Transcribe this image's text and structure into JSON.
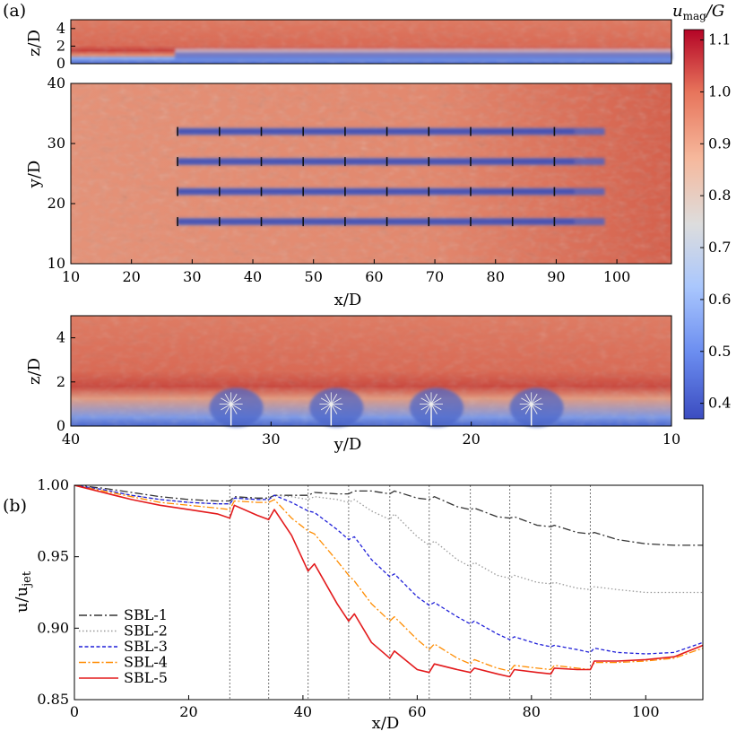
{
  "panel_a": {
    "label": "(a)",
    "colorbar": {
      "title": "u_mag/G",
      "title_main": "u",
      "title_sub": "mag",
      "title_tail": "/G",
      "range": [
        0.37,
        1.12
      ],
      "ticks": [
        "1.1",
        "1.0",
        "0.9",
        "0.8",
        "0.7",
        "0.6",
        "0.5",
        "0.4"
      ],
      "tick_values": [
        1.1,
        1.0,
        0.9,
        0.8,
        0.7,
        0.6,
        0.5,
        0.4
      ],
      "colormap": [
        "#3b4cc0",
        "#6b8df0",
        "#aac7fd",
        "#dddddd",
        "#f6b89c",
        "#e7745b",
        "#b40426"
      ]
    },
    "side_view": {
      "ylabel": "z/D",
      "yticks": [
        "0",
        "2",
        "4"
      ],
      "ytick_values": [
        0,
        2,
        4
      ],
      "zrange": [
        0,
        5
      ]
    },
    "top_view": {
      "xlabel": "x/D",
      "ylabel": "y/D",
      "xticks": [
        "10",
        "20",
        "30",
        "40",
        "50",
        "60",
        "70",
        "80",
        "90",
        "100"
      ],
      "xtick_values": [
        10,
        20,
        30,
        40,
        50,
        60,
        70,
        80,
        90,
        100
      ],
      "yticks": [
        "10",
        "20",
        "30",
        "40"
      ],
      "ytick_values": [
        10,
        20,
        30,
        40
      ],
      "xrange": [
        10,
        109
      ],
      "yrange": [
        10,
        40
      ],
      "turbine_rows_y": [
        17,
        22,
        27,
        32
      ],
      "turbine_cols_x": [
        27.6,
        34.5,
        41.4,
        48.3,
        55.2,
        62.1,
        69,
        75.9,
        82.8,
        89.7
      ]
    },
    "front_view": {
      "xlabel": "y/D",
      "ylabel": "z/D",
      "xticks": [
        "40",
        "30",
        "20",
        "10"
      ],
      "xtick_values": [
        40,
        30,
        20,
        10
      ],
      "yticks": [
        "0",
        "2",
        "4"
      ],
      "ytick_values": [
        0,
        2,
        4
      ],
      "yrange_horizontal": [
        40,
        10
      ],
      "zrange": [
        0,
        5
      ],
      "turbine_y": [
        32,
        27,
        22,
        17
      ],
      "hub_height": 1
    }
  },
  "panel_b": {
    "label": "(b)",
    "vlines_x": [
      27.2,
      34,
      40.9,
      48,
      55.2,
      62.1,
      69.3,
      76.2,
      83.4,
      90.3
    ]
  },
  "chart_data": {
    "type": "line",
    "xlabel": "x/D",
    "ylabel": "u/u_jet",
    "ylabel_main": "u/u",
    "ylabel_sub": "jet",
    "xlim": [
      0,
      110
    ],
    "ylim": [
      0.85,
      1.0
    ],
    "xticks": [
      "0",
      "20",
      "40",
      "60",
      "80",
      "100"
    ],
    "xtick_values": [
      0,
      20,
      40,
      60,
      80,
      100
    ],
    "yticks": [
      "0.85",
      "0.90",
      "0.95",
      "1.00"
    ],
    "ytick_values": [
      0.85,
      0.9,
      0.95,
      1.0
    ],
    "grid": false,
    "legend_position": "bottom-left",
    "x": [
      0,
      5,
      10,
      15,
      20,
      25,
      27.2,
      28,
      32,
      34,
      35,
      38,
      40.9,
      42,
      46,
      48,
      49,
      52,
      55.2,
      56,
      60,
      62.1,
      63,
      67,
      69.3,
      70,
      74,
      76.2,
      77,
      81,
      83.4,
      84,
      88,
      90.3,
      91,
      95,
      100,
      105,
      110
    ],
    "series": [
      {
        "name": "SBL-1",
        "color": "#333333",
        "dash": "9,3,2,3",
        "values": [
          1.0,
          0.998,
          0.995,
          0.992,
          0.99,
          0.989,
          0.989,
          0.992,
          0.991,
          0.991,
          0.993,
          0.993,
          0.993,
          0.995,
          0.994,
          0.994,
          0.996,
          0.996,
          0.994,
          0.996,
          0.991,
          0.99,
          0.992,
          0.985,
          0.983,
          0.984,
          0.978,
          0.977,
          0.978,
          0.972,
          0.971,
          0.972,
          0.967,
          0.966,
          0.967,
          0.962,
          0.959,
          0.958,
          0.958
        ]
      },
      {
        "name": "SBL-2",
        "color": "#999999",
        "dash": "1.5,2.5",
        "values": [
          1.0,
          0.997,
          0.993,
          0.99,
          0.988,
          0.987,
          0.987,
          0.991,
          0.99,
          0.99,
          0.993,
          0.992,
          0.99,
          0.992,
          0.99,
          0.988,
          0.99,
          0.982,
          0.976,
          0.98,
          0.964,
          0.958,
          0.961,
          0.948,
          0.943,
          0.946,
          0.937,
          0.935,
          0.937,
          0.932,
          0.931,
          0.932,
          0.928,
          0.927,
          0.929,
          0.927,
          0.925,
          0.925,
          0.925
        ]
      },
      {
        "name": "SBL-3",
        "color": "#1f1fd8",
        "dash": "4,2.5",
        "values": [
          1.0,
          0.997,
          0.993,
          0.99,
          0.988,
          0.987,
          0.987,
          0.991,
          0.99,
          0.99,
          0.993,
          0.988,
          0.982,
          0.981,
          0.969,
          0.962,
          0.964,
          0.948,
          0.936,
          0.938,
          0.922,
          0.916,
          0.918,
          0.908,
          0.903,
          0.905,
          0.896,
          0.892,
          0.894,
          0.889,
          0.887,
          0.888,
          0.885,
          0.883,
          0.886,
          0.883,
          0.882,
          0.883,
          0.89
        ]
      },
      {
        "name": "SBL-4",
        "color": "#ff8c00",
        "dash": "8,2.5,2,2.5",
        "values": [
          1.0,
          0.996,
          0.992,
          0.988,
          0.986,
          0.984,
          0.983,
          0.989,
          0.988,
          0.988,
          0.99,
          0.977,
          0.968,
          0.966,
          0.947,
          0.937,
          0.933,
          0.917,
          0.905,
          0.908,
          0.892,
          0.885,
          0.889,
          0.879,
          0.875,
          0.878,
          0.872,
          0.87,
          0.874,
          0.872,
          0.871,
          0.874,
          0.872,
          0.871,
          0.876,
          0.876,
          0.877,
          0.879,
          0.886
        ]
      },
      {
        "name": "SBL-5",
        "color": "#e31a1c",
        "dash": "",
        "values": [
          1.0,
          0.995,
          0.99,
          0.986,
          0.983,
          0.98,
          0.977,
          0.986,
          0.979,
          0.976,
          0.983,
          0.965,
          0.94,
          0.945,
          0.917,
          0.905,
          0.91,
          0.89,
          0.879,
          0.884,
          0.871,
          0.869,
          0.875,
          0.871,
          0.869,
          0.872,
          0.868,
          0.866,
          0.871,
          0.869,
          0.868,
          0.872,
          0.871,
          0.871,
          0.877,
          0.877,
          0.878,
          0.88,
          0.888
        ]
      }
    ]
  }
}
